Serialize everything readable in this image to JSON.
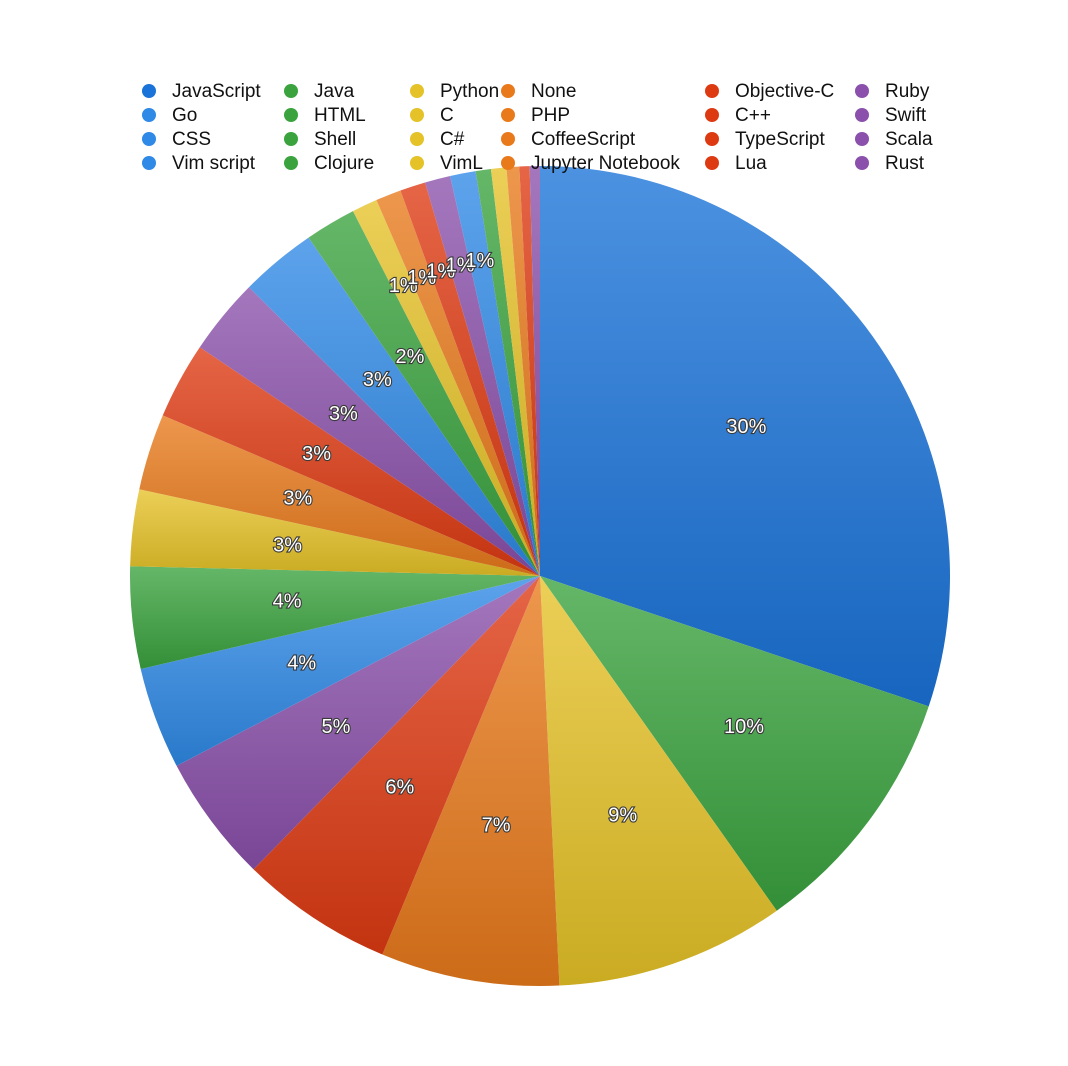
{
  "chart_data": {
    "type": "pie",
    "legend_position": "top",
    "start": "12 o'clock",
    "direction": "clockwise",
    "slices": [
      {
        "name": "JavaScript",
        "value": 30,
        "label": "30%",
        "color": "#1a73d9"
      },
      {
        "name": "Java",
        "value": 10,
        "label": "10%",
        "color": "#3aa33e"
      },
      {
        "name": "Python",
        "value": 9,
        "label": "9%",
        "color": "#e5c227"
      },
      {
        "name": "None",
        "value": 7,
        "label": "7%",
        "color": "#e87a1b"
      },
      {
        "name": "Objective-C",
        "value": 6,
        "label": "6%",
        "color": "#de3a12"
      },
      {
        "name": "Ruby",
        "value": 5,
        "label": "5%",
        "color": "#8a50ab"
      },
      {
        "name": "Go",
        "value": 4,
        "label": "4%",
        "color": "#2f89e6"
      },
      {
        "name": "HTML",
        "value": 4,
        "label": "4%",
        "color": "#3aa33e"
      },
      {
        "name": "C",
        "value": 3,
        "label": "3%",
        "color": "#e5c227"
      },
      {
        "name": "PHP",
        "value": 3,
        "label": "3%",
        "color": "#e87a1b"
      },
      {
        "name": "C++",
        "value": 3,
        "label": "3%",
        "color": "#de3a12"
      },
      {
        "name": "Swift",
        "value": 3,
        "label": "3%",
        "color": "#8a50ab"
      },
      {
        "name": "CSS",
        "value": 3,
        "label": "3%",
        "color": "#2f89e6"
      },
      {
        "name": "Shell",
        "value": 2,
        "label": "2%",
        "color": "#3aa33e"
      },
      {
        "name": "C#",
        "value": 1,
        "label": "1%",
        "color": "#e5c227"
      },
      {
        "name": "CoffeeScript",
        "value": 1,
        "label": "1%",
        "color": "#e87a1b"
      },
      {
        "name": "TypeScript",
        "value": 1,
        "label": "1%",
        "color": "#de3a12"
      },
      {
        "name": "Scala",
        "value": 1,
        "label": "1%",
        "color": "#8a50ab"
      },
      {
        "name": "Vim script",
        "value": 1,
        "label": "1%",
        "color": "#2f89e6"
      },
      {
        "name": "Clojure",
        "value": 0.6,
        "label": "",
        "color": "#3aa33e"
      },
      {
        "name": "VimL",
        "value": 0.6,
        "label": "",
        "color": "#e5c227"
      },
      {
        "name": "Jupyter Notebook",
        "value": 0.5,
        "label": "",
        "color": "#e87a1b"
      },
      {
        "name": "Lua",
        "value": 0.4,
        "label": "",
        "color": "#de3a12"
      },
      {
        "name": "Rust",
        "value": 0.4,
        "label": "",
        "color": "#8a50ab"
      }
    ],
    "legend_columns": [
      [
        "JavaScript",
        "Go",
        "CSS",
        "Vim script"
      ],
      [
        "Java",
        "HTML",
        "Shell",
        "Clojure"
      ],
      [
        "Python",
        "C",
        "C#",
        "VimL"
      ],
      [
        "None",
        "PHP",
        "CoffeeScript",
        "Jupyter Notebook"
      ],
      [
        "Objective-C",
        "C++",
        "TypeScript",
        "Lua"
      ],
      [
        "Ruby",
        "Swift",
        "Scala",
        "Rust"
      ]
    ]
  }
}
